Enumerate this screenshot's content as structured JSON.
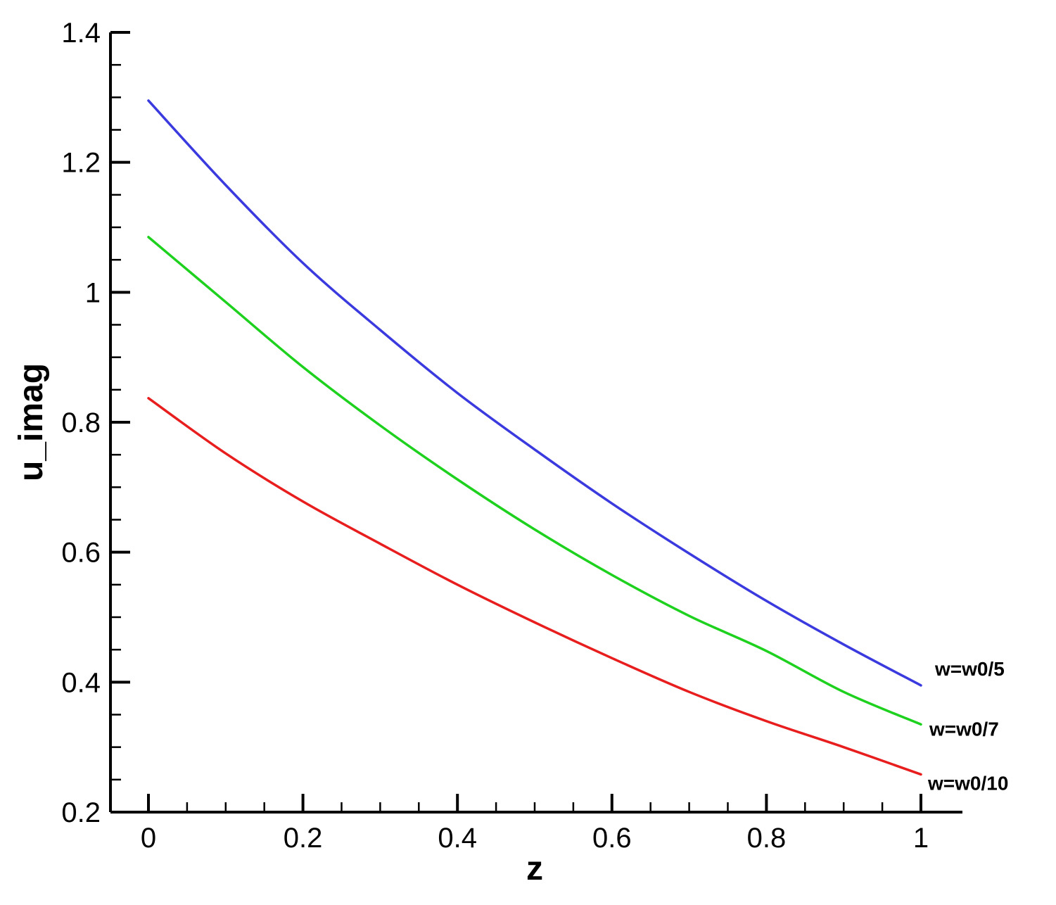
{
  "chart_data": {
    "type": "line",
    "title": "",
    "xlabel": "z",
    "ylabel": "u_imag",
    "xlim": [
      0,
      1
    ],
    "ylim": [
      0.2,
      1.4
    ],
    "xticks": [
      0,
      0.2,
      0.4,
      0.6,
      0.8,
      1
    ],
    "xtick_labels": [
      "0",
      "0.2",
      "0.4",
      "0.6",
      "0.8",
      "1"
    ],
    "yticks": [
      0.2,
      0.4,
      0.6,
      0.8,
      1.0,
      1.2,
      1.4
    ],
    "ytick_labels": [
      "0.2",
      "0.4",
      "0.6",
      "0.8",
      "1",
      "1.2",
      "1.4"
    ],
    "grid": false,
    "x": [
      0,
      0.1,
      0.2,
      0.3,
      0.4,
      0.5,
      0.6,
      0.7,
      0.8,
      0.9,
      1.0
    ],
    "series": [
      {
        "name": "w=w0/5",
        "color": "#3a3adf",
        "values": [
          1.295,
          1.165,
          1.045,
          0.942,
          0.845,
          0.758,
          0.675,
          0.598,
          0.525,
          0.458,
          0.395
        ]
      },
      {
        "name": "w=w0/7",
        "color": "#1fd11f",
        "values": [
          1.085,
          0.985,
          0.885,
          0.795,
          0.712,
          0.635,
          0.565,
          0.502,
          0.448,
          0.385,
          0.335
        ]
      },
      {
        "name": "w=w0/10",
        "color": "#e81e1e",
        "values": [
          0.837,
          0.752,
          0.678,
          0.613,
          0.55,
          0.492,
          0.437,
          0.385,
          0.34,
          0.3,
          0.258
        ]
      }
    ]
  }
}
